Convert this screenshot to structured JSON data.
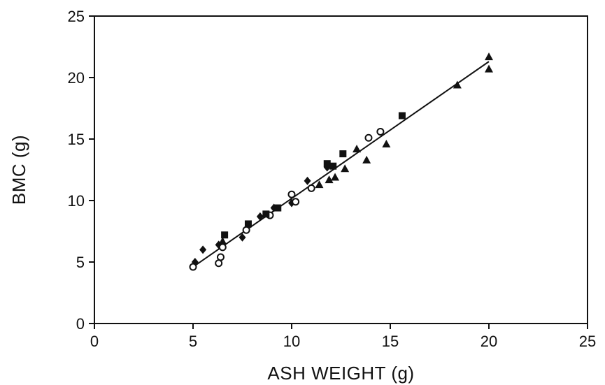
{
  "chart_data": {
    "type": "scatter",
    "title": "",
    "xlabel": "ASH WEIGHT (g)",
    "ylabel": "BMC (g)",
    "xlim": [
      0,
      25
    ],
    "ylim": [
      0,
      25
    ],
    "xticks": [
      0,
      5,
      10,
      15,
      20,
      25
    ],
    "yticks": [
      0,
      5,
      10,
      15,
      20,
      25
    ],
    "grid": false,
    "colors": {
      "ink": "#111111",
      "background": "#ffffff"
    },
    "series": [
      {
        "marker": "diamond-filled",
        "points": [
          [
            5.1,
            5.0
          ],
          [
            5.5,
            6.0
          ],
          [
            6.3,
            6.4
          ],
          [
            7.5,
            7.0
          ],
          [
            8.4,
            8.7
          ],
          [
            9.1,
            9.4
          ],
          [
            10.0,
            9.8
          ],
          [
            10.8,
            11.6
          ],
          [
            11.8,
            12.7
          ]
        ]
      },
      {
        "marker": "circle-open",
        "points": [
          [
            5.0,
            4.6
          ],
          [
            6.3,
            4.9
          ],
          [
            6.4,
            5.4
          ],
          [
            6.5,
            6.2
          ],
          [
            7.7,
            7.6
          ],
          [
            8.9,
            8.8
          ],
          [
            10.0,
            10.5
          ],
          [
            10.2,
            9.9
          ],
          [
            11.0,
            11.0
          ],
          [
            13.9,
            15.1
          ],
          [
            14.5,
            15.6
          ]
        ]
      },
      {
        "marker": "square-filled",
        "points": [
          [
            6.6,
            7.2
          ],
          [
            7.8,
            8.1
          ],
          [
            8.7,
            8.9
          ],
          [
            9.3,
            9.4
          ],
          [
            11.8,
            13.0
          ],
          [
            12.1,
            12.8
          ],
          [
            12.6,
            13.8
          ],
          [
            15.6,
            16.9
          ]
        ]
      },
      {
        "marker": "triangle-filled",
        "points": [
          [
            6.5,
            6.7
          ],
          [
            11.4,
            11.3
          ],
          [
            11.9,
            11.7
          ],
          [
            12.2,
            11.9
          ],
          [
            12.7,
            12.6
          ],
          [
            13.3,
            14.2
          ],
          [
            13.8,
            13.3
          ],
          [
            14.8,
            14.6
          ],
          [
            18.4,
            19.4
          ],
          [
            20.0,
            20.7
          ],
          [
            20.0,
            21.7
          ]
        ]
      }
    ],
    "fit_line": {
      "x": [
        5.0,
        20.0
      ],
      "y": [
        4.6,
        21.3
      ]
    }
  }
}
